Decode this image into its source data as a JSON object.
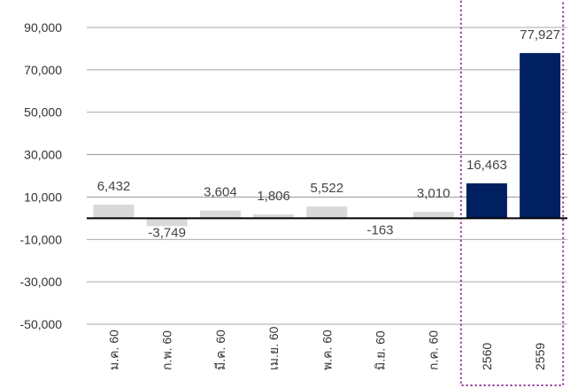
{
  "chart_data": {
    "type": "bar",
    "categories": [
      "ม.ค. 60",
      "ก.พ. 60",
      "มี.ค. 60",
      "เม.ย. 60",
      "พ.ค. 60",
      "มิ.ย. 60",
      "ก.ค. 60",
      "2560",
      "2559"
    ],
    "values": [
      6432,
      -3749,
      3604,
      1806,
      5522,
      -163,
      3010,
      16463,
      77927
    ],
    "data_labels": [
      "6,432",
      "-3,749",
      "3,604",
      "1,806",
      "5,522",
      "-163",
      "3,010",
      "16,463",
      "77,927"
    ],
    "ylim": [
      -50000,
      90000
    ],
    "yticks": [
      90000,
      70000,
      50000,
      30000,
      10000,
      -10000,
      -30000,
      -50000
    ],
    "ytick_labels": [
      "90,000",
      "70,000",
      "50,000",
      "30,000",
      "10,000",
      "-10,000",
      "-30,000",
      "-50,000"
    ],
    "title": "",
    "xlabel": "",
    "ylabel": "",
    "grid": true,
    "colors": {
      "monthly": "#d9d9d9",
      "annual": "#002060",
      "highlight_box": "#8b2a8b",
      "zero_line": "#000000",
      "grid": "#8c8c8c"
    },
    "highlighted_categories": [
      "2560",
      "2559"
    ]
  }
}
